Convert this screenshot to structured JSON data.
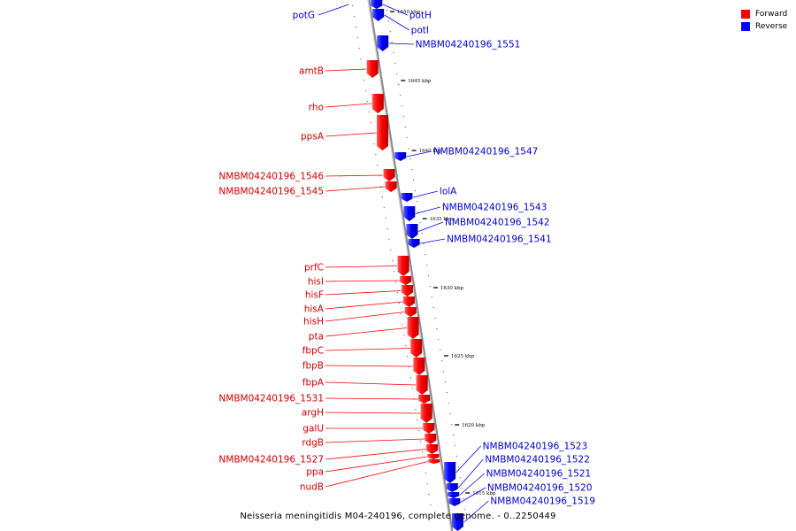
{
  "legend": {
    "forward": {
      "label": "Forward",
      "color": "#ff0000"
    },
    "reverse": {
      "label": "Reverse",
      "color": "#0000ff"
    }
  },
  "footer": "Neisseria meningitidis M04-240196, complete genome. - 0..2250449",
  "ticks": [
    {
      "label": "1650 kbp"
    },
    {
      "label": "1645 kbp"
    },
    {
      "label": "1640 kbp"
    },
    {
      "label": "1635 kbp"
    },
    {
      "label": "1630 kbp"
    },
    {
      "label": "1625 kbp"
    },
    {
      "label": "1620 kbp"
    },
    {
      "label": "1615 kbp"
    }
  ],
  "genes_forward": [
    {
      "name": "amtB"
    },
    {
      "name": "rho"
    },
    {
      "name": "ppsA"
    },
    {
      "name": "NMBM04240196_1546"
    },
    {
      "name": "NMBM04240196_1545"
    },
    {
      "name": "prfC"
    },
    {
      "name": "hisI"
    },
    {
      "name": "hisF"
    },
    {
      "name": "hisA"
    },
    {
      "name": "hisH"
    },
    {
      "name": "pta"
    },
    {
      "name": "fbpC"
    },
    {
      "name": "fbpB"
    },
    {
      "name": "fbpA"
    },
    {
      "name": "NMBM04240196_1531"
    },
    {
      "name": "argH"
    },
    {
      "name": "galU"
    },
    {
      "name": "rdgB"
    },
    {
      "name": "NMBM04240196_1527"
    },
    {
      "name": "ppa"
    },
    {
      "name": "nudB"
    }
  ],
  "genes_reverse": [
    {
      "name": "potG"
    },
    {
      "name": "potH"
    },
    {
      "name": "potI"
    },
    {
      "name": "NMBM04240196_1551"
    },
    {
      "name": "NMBM04240196_1547"
    },
    {
      "name": "lolA"
    },
    {
      "name": "NMBM04240196_1543"
    },
    {
      "name": "NMBM04240196_1542"
    },
    {
      "name": "NMBM04240196_1541"
    },
    {
      "name": "NMBM04240196_1523"
    },
    {
      "name": "NMBM04240196_1522"
    },
    {
      "name": "NMBM04240196_1521"
    },
    {
      "name": "NMBM04240196_1520"
    },
    {
      "name": "NMBM04240196_1519"
    }
  ]
}
